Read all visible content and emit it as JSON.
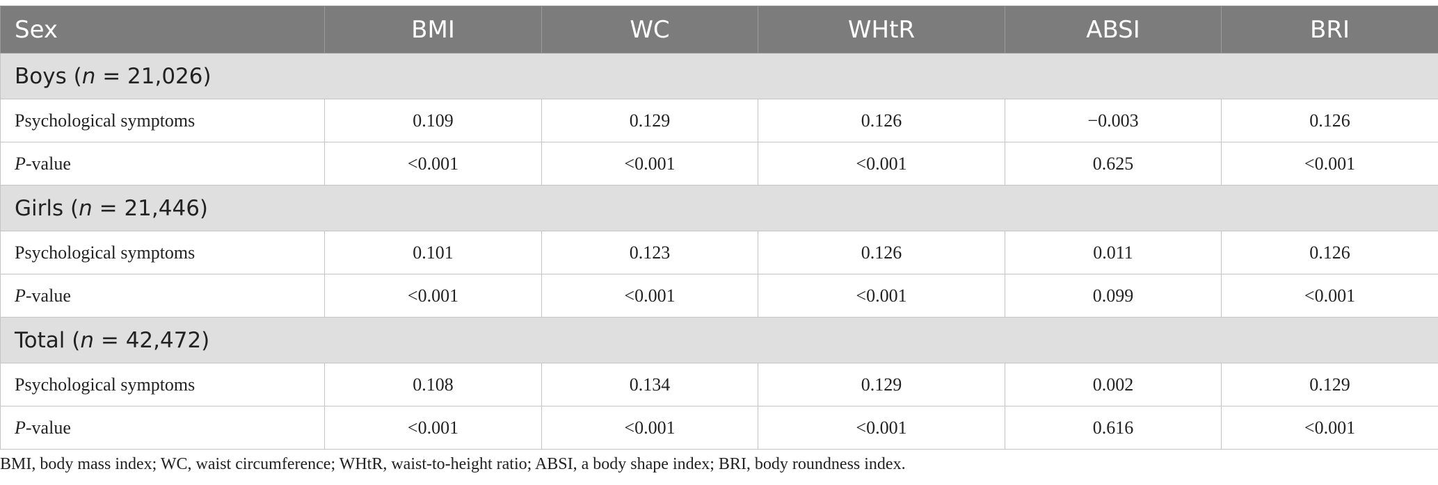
{
  "header": {
    "columns": [
      "Sex",
      "BMI",
      "WC",
      "WHtR",
      "ABSI",
      "BRI"
    ]
  },
  "groups": [
    {
      "name": "Boys",
      "n_label": "n",
      "n_value": " = 21,026)",
      "rows": [
        {
          "label": "Psychological symptoms",
          "values": [
            "0.109",
            "0.129",
            "0.126",
            "−0.003",
            "0.126"
          ]
        },
        {
          "label_italic": "P",
          "label_rest": "-value",
          "values": [
            "<0.001",
            "<0.001",
            "<0.001",
            "0.625",
            "<0.001"
          ]
        }
      ]
    },
    {
      "name": "Girls",
      "n_label": "n",
      "n_value": " = 21,446)",
      "rows": [
        {
          "label": "Psychological symptoms",
          "values": [
            "0.101",
            "0.123",
            "0.126",
            "0.011",
            "0.126"
          ]
        },
        {
          "label_italic": "P",
          "label_rest": "-value",
          "values": [
            "<0.001",
            "<0.001",
            "<0.001",
            "0.099",
            "<0.001"
          ]
        }
      ]
    },
    {
      "name": "Total",
      "n_label": "n",
      "n_value": " = 42,472)",
      "rows": [
        {
          "label": "Psychological symptoms",
          "values": [
            "0.108",
            "0.134",
            "0.129",
            "0.002",
            "0.129"
          ]
        },
        {
          "label_italic": "P",
          "label_rest": "-value",
          "values": [
            "<0.001",
            "<0.001",
            "<0.001",
            "0.616",
            "<0.001"
          ]
        }
      ]
    }
  ],
  "footnote": "BMI, body mass index; WC, waist circumference; WHtR, waist-to-height ratio; ABSI, a body shape index; BRI, body roundness index."
}
